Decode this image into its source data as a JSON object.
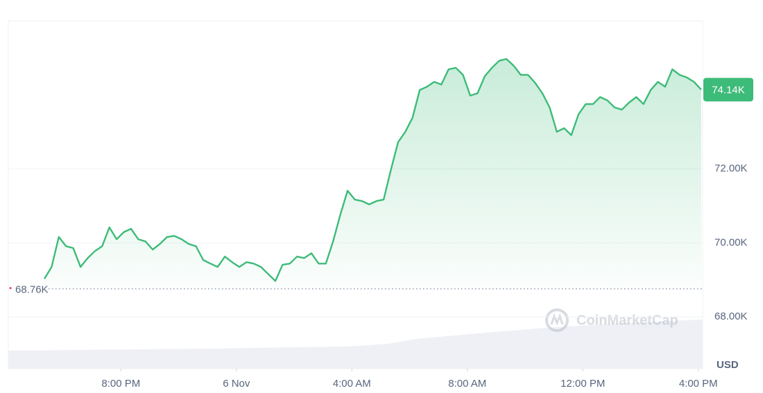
{
  "chart_data": {
    "type": "line",
    "x": [
      17.35,
      17.6,
      17.85,
      18.1,
      18.35,
      18.6,
      18.85,
      19.1,
      19.35,
      19.6,
      19.85,
      20.1,
      20.35,
      20.6,
      20.85,
      21.1,
      21.35,
      21.6,
      21.85,
      22.1,
      22.35,
      22.6,
      22.85,
      23.1,
      23.35,
      23.6,
      23.85,
      24.1,
      24.35,
      24.6,
      24.85,
      25.1,
      25.35,
      25.6,
      25.85,
      26.1,
      26.35,
      26.6,
      26.85,
      27.1,
      27.35,
      27.6,
      27.85,
      28.1,
      28.35,
      28.6,
      28.85,
      29.1,
      29.35,
      29.6,
      29.85,
      30.1,
      30.35,
      30.6,
      30.85,
      31.1,
      31.35,
      31.6,
      31.85,
      32.1,
      32.35,
      32.6,
      32.85,
      33.1,
      33.35,
      33.6,
      33.85,
      34.1,
      34.35,
      34.6,
      34.85,
      35.1,
      35.35,
      35.6,
      35.85,
      36.1,
      36.35,
      36.6,
      36.85,
      37.1,
      37.35,
      37.6,
      37.85,
      38.1,
      38.35,
      38.6,
      38.85,
      39.1,
      39.35,
      39.6,
      39.85,
      40.1
    ],
    "series": [
      {
        "color": "#3dbb78",
        "values": [
          69030,
          69350,
          70160,
          69910,
          69860,
          69350,
          69590,
          69780,
          69910,
          70420,
          70100,
          70290,
          70380,
          70100,
          70040,
          69820,
          69970,
          70160,
          70190,
          70100,
          69970,
          69910,
          69540,
          69440,
          69350,
          69630,
          69480,
          69350,
          69480,
          69440,
          69350,
          69160,
          68970,
          69410,
          69440,
          69630,
          69590,
          69720,
          69440,
          69440,
          70040,
          70760,
          71410,
          71170,
          71130,
          71040,
          71130,
          71170,
          71970,
          72720,
          73000,
          73380,
          74130,
          74220,
          74350,
          74280,
          74690,
          74730,
          74540,
          73980,
          74040,
          74500,
          74730,
          74920,
          74970,
          74790,
          74540,
          74540,
          74320,
          74040,
          73660,
          73000,
          73100,
          72910,
          73470,
          73750,
          73750,
          73940,
          73850,
          73660,
          73600,
          73790,
          73940,
          73750,
          74130,
          74350,
          74220,
          74690,
          74540,
          74470,
          74350,
          74140
        ]
      }
    ],
    "xlim": [
      16.1,
      40.15
    ],
    "xticks": [
      {
        "value": 20,
        "label": "8:00 PM"
      },
      {
        "value": 24,
        "label": "6 Nov"
      },
      {
        "value": 28,
        "label": "4:00 AM"
      },
      {
        "value": 32,
        "label": "8:00 AM"
      },
      {
        "value": 36,
        "label": "12:00 PM"
      },
      {
        "value": 40,
        "label": "4:00 PM"
      }
    ],
    "ylim": [
      66600,
      76000
    ],
    "yticks": [
      {
        "value": 68000,
        "label": "68.00K"
      },
      {
        "value": 70000,
        "label": "70.00K"
      },
      {
        "value": 72000,
        "label": "72.00K"
      }
    ],
    "grid": true,
    "reference": {
      "value": 68760,
      "label": "68.76K"
    },
    "current_price": {
      "value": 74140,
      "label": "74.14K"
    },
    "y_unit": "USD",
    "watermark": "CoinMarketCap"
  }
}
